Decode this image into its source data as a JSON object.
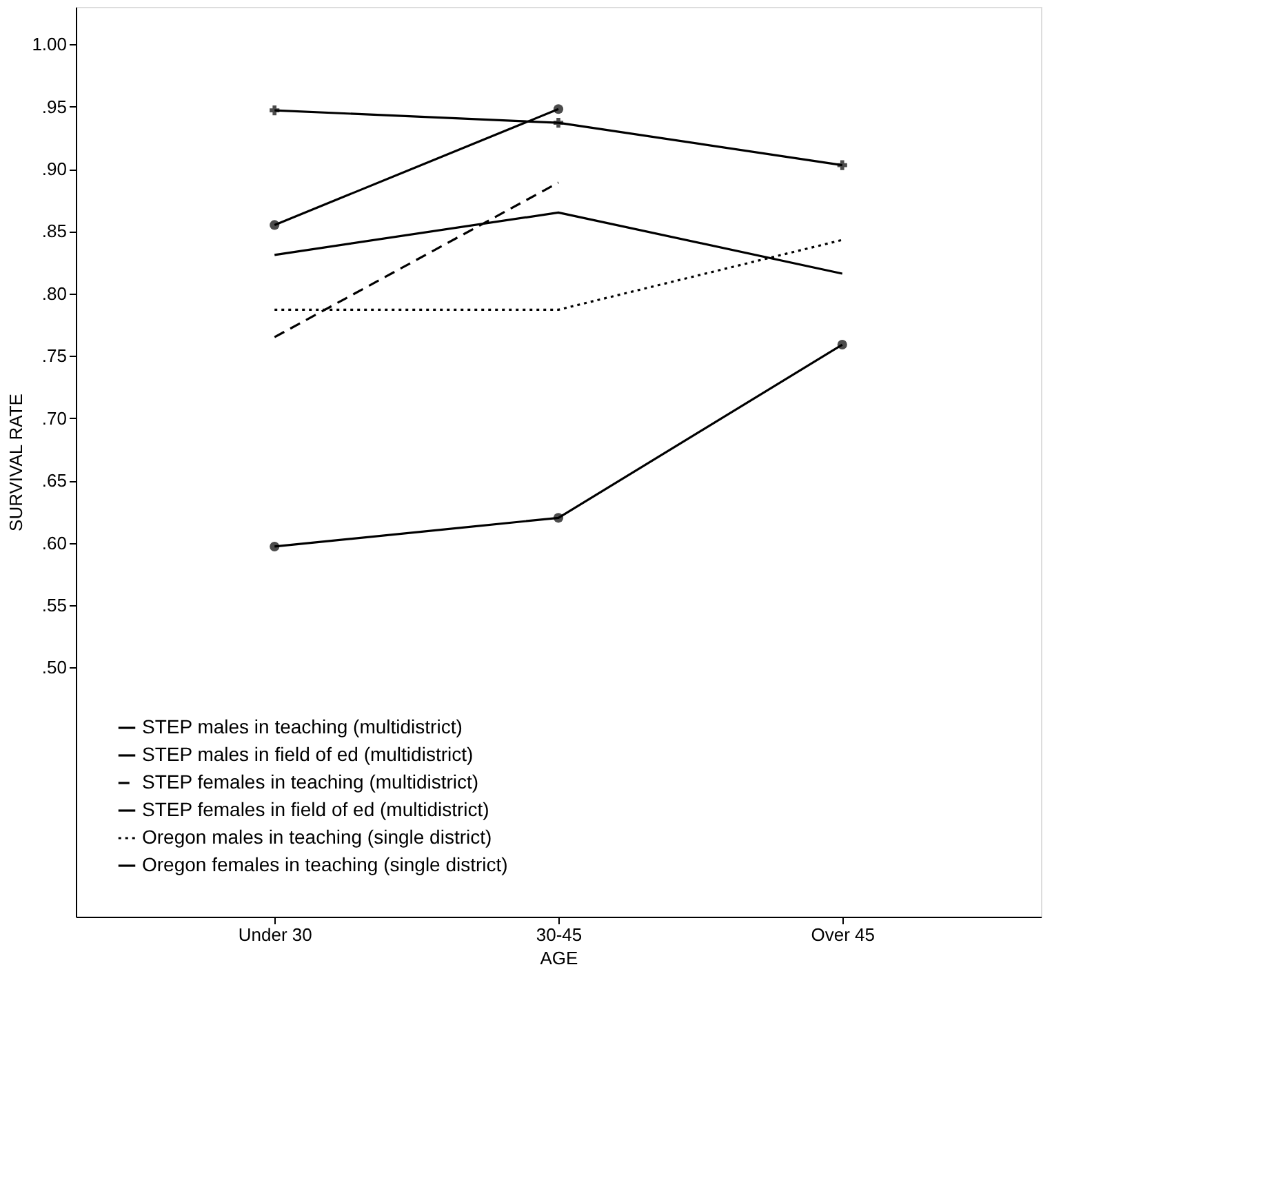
{
  "chart_data": {
    "type": "line",
    "xlabel": "AGE",
    "ylabel": "SURVIVAL RATE",
    "categories": [
      "Under 30",
      "30-45",
      "Over 45"
    ],
    "series": [
      {
        "name": "STEP males in teaching (multidistrict)",
        "color": "#000000",
        "values": [
          0.831,
          0.865,
          0.816
        ],
        "line_style": "solid",
        "marker": "none"
      },
      {
        "name": "STEP males in field of ed (multidistrict)",
        "color": "#000000",
        "values": [
          0.947,
          0.937,
          0.903
        ],
        "line_style": "solid",
        "marker": "cross"
      },
      {
        "name": "STEP females in teaching (multidistrict)",
        "color": "#000000",
        "values": [
          0.765,
          0.889,
          null
        ],
        "line_style": "dashed",
        "marker": "none"
      },
      {
        "name": "STEP females in field of ed (multidistrict)",
        "color": "#000000",
        "values": [
          0.855,
          0.948,
          null
        ],
        "line_style": "solid",
        "marker": "circle"
      },
      {
        "name": "Oregon males in teaching (single district)",
        "color": "#000000",
        "values": [
          0.787,
          0.787,
          0.843
        ],
        "line_style": "dotted",
        "marker": "none"
      },
      {
        "name": "Oregon females in teaching (single district)",
        "color": "#000000",
        "values": [
          0.597,
          0.62,
          0.759
        ],
        "line_style": "solid",
        "marker": "circle"
      }
    ],
    "ylim": [
      0.3,
      1.03
    ],
    "yticks": [
      {
        "value": 0.5,
        "label": ".50"
      },
      {
        "value": 0.55,
        "label": ".55"
      },
      {
        "value": 0.6,
        "label": ".60"
      },
      {
        "value": 0.65,
        "label": ".65"
      },
      {
        "value": 0.7,
        "label": ".70"
      },
      {
        "value": 0.75,
        "label": ".75"
      },
      {
        "value": 0.8,
        "label": ".80"
      },
      {
        "value": 0.85,
        "label": ".85"
      },
      {
        "value": 0.9,
        "label": ".90"
      },
      {
        "value": 0.95,
        "label": ".95"
      },
      {
        "value": 1.0,
        "label": "1.00"
      }
    ],
    "grid": false,
    "legend": "bottom left"
  }
}
